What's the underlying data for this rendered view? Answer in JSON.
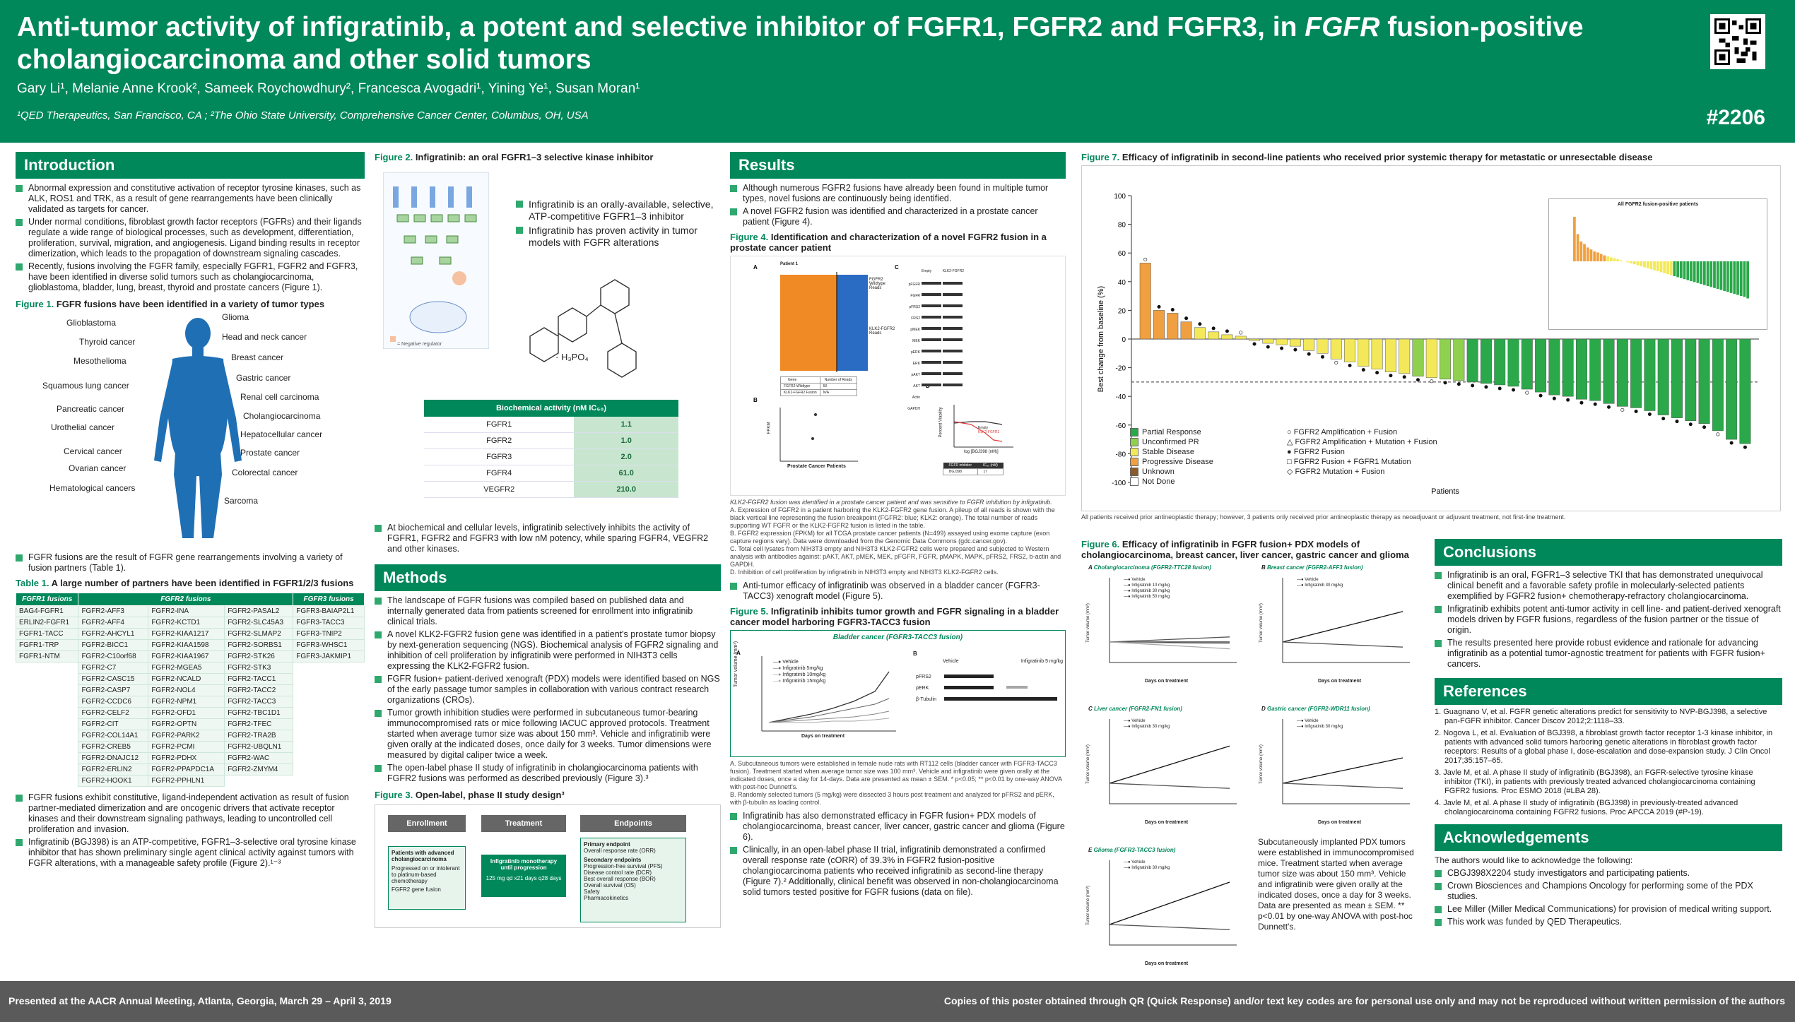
{
  "header": {
    "title_line1": "Anti-tumor activity of infigratinib, a potent and selective inhibitor of FGFR1, FGFR2 and FGFR3, in ",
    "title_italic": "FGFR",
    "title_line1_end": " fusion-positive",
    "title_line2": "cholangiocarcinoma and other solid tumors",
    "authors": "Gary Li¹, Melanie Anne Krook², Sameek Roychowdhury², Francesca Avogadri¹, Yining Ye¹, Susan Moran¹",
    "affiliations": "¹QED Therapeutics, San Francisco, CA ; ²The Ohio State University, Comprehensive Cancer Center, Columbus, OH, USA",
    "poster_id": "#2206"
  },
  "intro": {
    "heading": "Introduction",
    "bullets": [
      "Abnormal expression and constitutive activation of receptor tyrosine kinases, such as ALK, ROS1 and TRK, as a result of gene rearrangements have been clinically validated as targets for cancer.",
      "Under normal conditions, fibroblast growth factor receptors (FGFRs) and their ligands regulate a wide range of biological processes, such as development, differentiation, proliferation, survival, migration, and angiogenesis. Ligand binding results in receptor dimerization, which leads to the propagation of downstream signaling cascades.",
      "Recently, fusions involving the FGFR family, especially FGFR1, FGFR2 and FGFR3, have been identified in diverse solid tumors such as cholangiocarcinoma, glioblastoma, bladder, lung, breast, thyroid and prostate cancers (Figure 1)."
    ],
    "fig1_num": "Figure 1.",
    "fig1_title": "FGFR fusions have been identified in a variety of tumor types",
    "tumors_left": [
      "Glioblastoma",
      "Thyroid cancer",
      "Mesothelioma",
      "Squamous lung cancer",
      "Pancreatic cancer",
      "Urothelial cancer",
      "Cervical cancer",
      "Ovarian cancer",
      "Hematological cancers"
    ],
    "tumors_right": [
      "Glioma",
      "Head and neck cancer",
      "Breast cancer",
      "Gastric cancer",
      "Renal cell carcinoma",
      "Cholangiocarcinoma",
      "Hepatocellular cancer",
      "Prostate cancer",
      "Colorectal cancer",
      "Sarcoma"
    ],
    "after_fig1": "FGFR fusions are the result of FGFR gene rearrangements involving a variety of fusion partners (Table 1).",
    "table1_num": "Table 1.",
    "table1_title": "A large number of partners have been identified in FGFR1/2/3 fusions",
    "table1_headers": [
      "FGFR1 fusions",
      "FGFR2 fusions",
      "FGFR3 fusions"
    ],
    "table1_fgfr1": [
      "BAG4-FGFR1",
      "ERLIN2-FGFR1",
      "FGFR1-TACC",
      "FGFR1-TRP",
      "FGFR1-NTM"
    ],
    "table1_fgfr2a": [
      "FGFR2-AFF3",
      "FGFR2-AFF4",
      "FGFR2-AHCYL1",
      "FGFR2-BICC1",
      "FGFR2-C10orf68",
      "FGFR2-C7",
      "FGFR2-CASC15",
      "FGFR2-CASP7",
      "FGFR2-CCDC6",
      "FGFR2-CELF2",
      "FGFR2-CIT",
      "FGFR2-COL14A1",
      "FGFR2-CREB5",
      "FGFR2-DNAJC12",
      "FGFR2-ERLIN2",
      "FGFR2-HOOK1"
    ],
    "table1_fgfr2b": [
      "FGFR2-INA",
      "FGFR2-KCTD1",
      "FGFR2-KIAA1217",
      "FGFR2-KIAA1598",
      "FGFR2-KIAA1967",
      "FGFR2-MGEA5",
      "FGFR2-NCALD",
      "FGFR2-NOL4",
      "FGFR2-NPM1",
      "FGFR2-OFD1",
      "FGFR2-OPTN",
      "FGFR2-PARK2",
      "FGFR2-PCMI",
      "FGFR2-PDHX",
      "FGFR2-PPAPDC1A",
      "FGFR2-PPHLN1"
    ],
    "table1_fgfr2c": [
      "FGFR2-PASAL2",
      "FGFR2-SLC45A3",
      "FGFR2-SLMAP2",
      "FGFR2-SORBS1",
      "FGFR2-STK26",
      "FGFR2-STK3",
      "FGFR2-TACC1",
      "FGFR2-TACC2",
      "FGFR2-TACC3",
      "FGFR2-TBC1D1",
      "FGFR2-TFEC",
      "FGFR2-TRA2B",
      "FGFR2-UBQLN1",
      "FGFR2-WAC",
      "FGFR2-ZMYM4"
    ],
    "table1_fgfr3": [
      "FGFR3-BAIAP2L1",
      "FGFR3-TACC3",
      "FGFR3-TNIP2",
      "FGFR3-WHSC1",
      "FGFR3-JAKMIP1"
    ],
    "after_table": [
      "FGFR fusions exhibit constitutive, ligand-independent activation as result of fusion partner-mediated dimerization and are oncogenic drivers that activate receptor kinases and their downstream signaling pathways, leading to uncontrolled cell proliferation and invasion.",
      "Infigratinib (BGJ398) is an ATP-competitive, FGFR1–3-selective oral tyrosine kinase inhibitor that has shown preliminary single agent clinical activity against tumors with FGFR alterations, with a manageable safety profile (Figure 2).¹⁻³"
    ]
  },
  "col2": {
    "fig2_num": "Figure 2.",
    "fig2_title": "Infigratinib: an oral FGFR1–3 selective kinase inhibitor",
    "fig2_bullets": [
      "Infigratinib is an orally-available, selective, ATP-competitive FGFR1–3 inhibitor",
      "Infigratinib has proven activity in tumor models with FGFR alterations"
    ],
    "neg_reg": "= Negative regulator",
    "hpo": "· H₃PO₄",
    "bio_header": "Biochemical activity (nM IC₅₀)",
    "bio_rows": [
      [
        "FGFR1",
        "1.1"
      ],
      [
        "FGFR2",
        "1.0"
      ],
      [
        "FGFR3",
        "2.0"
      ],
      [
        "FGFR4",
        "61.0"
      ],
      [
        "VEGFR2",
        "210.0"
      ]
    ],
    "fig2_after": "At biochemical and cellular levels, infigratinib selectively inhibits the activity of FGFR1, FGFR2 and FGFR3 with low nM potency, while sparing FGFR4, VEGFR2 and other kinases.",
    "methods_heading": "Methods",
    "methods": [
      "The landscape of FGFR fusions was compiled based on published data and internally generated data from patients screened for enrollment into infigratinib clinical trials.",
      "A novel KLK2-FGFR2 fusion gene was identified in a patient's prostate tumor biopsy by next-generation sequencing (NGS). Biochemical analysis of FGFR2 signaling and inhibition of cell proliferation by infigratinib were performed in NIH3T3 cells expressing the KLK2-FGFR2 fusion.",
      "FGFR fusion+ patient-derived xenograft (PDX) models were identified based on NGS of the early passage tumor samples in collaboration with various contract research organizations (CROs).",
      "Tumor growth inhibition studies were performed in subcutaneous tumor-bearing immunocompromised rats or mice following IACUC approved protocols. Treatment started when average tumor size was about 150 mm³. Vehicle and infigratinib were given orally at the indicated doses, once daily for 3 weeks. Tumor dimensions were measured by digital caliper twice a week.",
      "The open-label phase II study of infigratinib in cholangiocarcinoma patients with FGFR2 fusions was performed as described previously (Figure 3).³"
    ],
    "fig3_num": "Figure 3.",
    "fig3_title": "Open-label, phase II study design³",
    "fig3_steps": [
      "Enrollment",
      "Treatment",
      "Endpoints"
    ],
    "fig3_enroll_title": "Patients with advanced cholangiocarcinoma",
    "fig3_enroll_items": [
      "Progressed on or intolerant to platinum-based chemotherapy",
      "FGFR2 gene fusion"
    ],
    "fig3_treat": "Infigratinib monotherapy until progression",
    "fig3_dose": "125 mg qd x21 days q28 days",
    "fig3_primary": "Primary endpoint",
    "fig3_primary_item": "Overall response rate (ORR)",
    "fig3_secondary": "Secondary endpoints",
    "fig3_secondary_items": [
      "Progression-free survival (PFS)",
      "Disease control rate (DCR)",
      "Best overall response (BOR)",
      "Overall survival (OS)",
      "Safety",
      "Pharmacokinetics"
    ]
  },
  "results": {
    "heading": "Results",
    "bullets": [
      "Although numerous FGFR2 fusions have already been found in multiple tumor types, novel fusions are continuously being identified.",
      "A novel FGFR2 fusion was identified and characterized in a prostate cancer patient (Figure 4)."
    ],
    "fig4_num": "Figure 4.",
    "fig4_title": "Identification and characterization of a novel FGFR2 fusion in a prostate cancer patient",
    "fig4_caption": "KLK2-FGFR2 fusion was identified in a prostate cancer patient and was sensitive to FGFR inhibition by infigratinib.",
    "fig4_notes": [
      "A. Expression of FGFR2 in a patient harboring the KLK2-FGFR2 gene fusion. A pileup of all reads is shown with the black vertical line representing the fusion breakpoint (FGFR2: blue; KLK2: orange). The total number of reads supporting WT FGFR or the KLK2-FGFR2 fusion is listed in the table.",
      "B. FGFR2 expression (FPKM) for all TCGA prostate cancer patients (N=499) assayed using exome capture (exon capture regions vary). Data were downloaded from the Genomic Data Commons (gdc.cancer.gov).",
      "C. Total cell lysates from NIH3T3 empty and NIH3T3 KLK2-FGFR2 cells were prepared and subjected to Western analysis with antibodies against: pAKT, AKT, pMEK, MEK, pFGFR, FGFR, pMAPK, MAPK, pFRS2, FRS2, b-actin and GAPDH.",
      "D. Inhibition of cell proliferation by infigratinib in NIH3T3 empty and NIH3T3 KLK2-FGFR2 cells."
    ],
    "fig4_patient": "Patient 1",
    "fig4_wt_reads": "FGFR2 Wildtype Reads",
    "fig4_fusion_reads": "KLK2-FGFR2 Reads",
    "fig4_table_headers": [
      "Gene",
      "Number of Reads"
    ],
    "fig4_table_rows": [
      [
        "FGFR2-Wildtype",
        "50"
      ],
      [
        "KLK2-FGFR2 Fusion",
        "N/A"
      ]
    ],
    "fig4_c_cols": [
      "Empty",
      "KLK2-FGFR2"
    ],
    "fig4_blots": [
      "pFGFR",
      "FGFR",
      "pFRS2",
      "FRS2",
      "pMEK",
      "MEK",
      "pERK",
      "ERK",
      "pAKT",
      "AKT",
      "Actin",
      "GAPDH"
    ],
    "fig4_b_label": "Prostate Cancer Patients",
    "fig4_b_ylabel": "FPKM",
    "fig4_d_table_h": [
      "FGFR inhibitor",
      "IC₅₀ (nM)"
    ],
    "fig4_d_table_r": [
      "BGJ398",
      "17"
    ],
    "fig4_d_xlabel": "log [BGJ398 (nM)]",
    "fig4_d_ylabel": "Percent Viability",
    "fig4_d_legend": [
      "Empty",
      "KLK2-FGFR2"
    ],
    "after_fig4": "Anti-tumor efficacy of infigratinib was observed in a bladder cancer (FGFR3-TACC3) xenograft model (Figure 5).",
    "fig5_num": "Figure 5.",
    "fig5_title": "Infigratinib inhibits tumor growth and FGFR signaling in a bladder cancer model harboring FGFR3-TACC3 fusion",
    "fig5_header": "Bladder cancer (FGFR3-TACC3 fusion)",
    "fig5_legend": [
      "Vehicle",
      "Infigratinib 5mg/kg",
      "Infigratinib 10mg/kg",
      "Infigratinib 15mg/kg"
    ],
    "fig5_xlabel": "Days on treatment",
    "fig5_ylabel": "Tumor volume (mm³)",
    "fig5_b_cols": [
      "Vehicle",
      "Infigratinib 5 mg/kg"
    ],
    "fig5_b_rows": [
      "pFRS2",
      "pERK",
      "β-Tubulin"
    ],
    "fig5_notes": [
      "A. Subcutaneous tumors were established in female nude rats with RT112 cells (bladder cancer with FGFR3-TACC3 fusion). Treatment started when average tumor size was 100 mm³. Vehicle and infigratinib were given orally at the indicated doses, once a day for 14-days. Data are presented as mean ± SEM. * p<0.05; ** p<0.01 by one-way ANOVA with post-hoc Dunnett's.",
      "B. Randomly selected tumors (5 mg/kg) were dissected 3 hours post treatment and analyzed for pFRS2 and pERK, with β-tubulin as loading control."
    ],
    "bullets2": [
      "Infigratinib has also demonstrated efficacy in FGFR fusion+ PDX models of cholangiocarcinoma, breast cancer, liver cancer, gastric cancer and glioma (Figure 6).",
      "Clinically, in an open-label phase II trial, infigratinib demonstrated a confirmed overall response rate (cORR) of 39.3% in FGFR2 fusion-positive cholangiocarcinoma patients who received infigratinib as second-line therapy (Figure 7).² Additionally, clinical benefit was observed in non-cholangiocarcinoma solid tumors tested positive for FGFR fusions (data on file)."
    ]
  },
  "fig7": {
    "num": "Figure 7.",
    "title": "Efficacy of infigratinib in second-line patients who received prior systemic therapy for metastatic or unresectable disease",
    "ylabel": "Best change from baseline (%)",
    "xlabel": "Patients",
    "note": "All patients received prior antineoplastic therapy; however, 3 patients only received prior antineoplastic therapy as neoadjuvant or adjuvant treatment, not first-line treatment.",
    "inset_title": "All FGFR2 fusion-positive patients",
    "legend_colors": [
      [
        "Partial Response",
        "#2aa84a"
      ],
      [
        "Unconfirmed PR",
        "#8fd14f"
      ],
      [
        "Stable Disease",
        "#f2e85a"
      ],
      [
        "Progressive Disease",
        "#f0a040"
      ],
      [
        "Unknown",
        "#8a5a2a"
      ],
      [
        "Not Done",
        "#ffffff"
      ]
    ],
    "legend_symbols": [
      [
        "FGFR2 Amplification + Fusion",
        "○"
      ],
      [
        "FGFR2 Amplification + Mutation + Fusion",
        "△"
      ],
      [
        "FGFR2 Fusion",
        "●"
      ],
      [
        "FGFR2 Fusion + FGFR1 Mutation",
        "□"
      ],
      [
        "FGFR2 Mutation + Fusion",
        "◇"
      ]
    ]
  },
  "chart_data": {
    "type": "bar",
    "title": "Efficacy of infigratinib in second-line patients who received prior systemic therapy for metastatic or unresectable disease",
    "xlabel": "Patients",
    "ylabel": "Best change from baseline (%)",
    "ylim": [
      -100,
      100
    ],
    "values": [
      53,
      20,
      18,
      12,
      8,
      5,
      3,
      2,
      -1,
      -3,
      -4,
      -5,
      -8,
      -10,
      -14,
      -16,
      -19,
      -21,
      -23,
      -24,
      -26,
      -27,
      -28,
      -29,
      -30,
      -31,
      -32,
      -33,
      -35,
      -37,
      -39,
      -40,
      -42,
      -43,
      -45,
      -47,
      -48,
      -50,
      -53,
      -55,
      -57,
      -59,
      -64,
      -70,
      -73
    ],
    "colors": [
      "#f0a040",
      "#f0a040",
      "#f0a040",
      "#f0a040",
      "#f2e85a",
      "#f2e85a",
      "#f2e85a",
      "#f2e85a",
      "#f2e85a",
      "#f2e85a",
      "#f2e85a",
      "#f2e85a",
      "#f2e85a",
      "#f2e85a",
      "#f2e85a",
      "#f2e85a",
      "#f2e85a",
      "#f2e85a",
      "#f2e85a",
      "#f2e85a",
      "#8fd14f",
      "#f2e85a",
      "#8fd14f",
      "#8fd14f",
      "#2aa84a",
      "#2aa84a",
      "#2aa84a",
      "#2aa84a",
      "#2aa84a",
      "#2aa84a",
      "#2aa84a",
      "#2aa84a",
      "#2aa84a",
      "#2aa84a",
      "#2aa84a",
      "#2aa84a",
      "#2aa84a",
      "#2aa84a",
      "#2aa84a",
      "#2aa84a",
      "#2aa84a",
      "#2aa84a",
      "#2aa84a",
      "#2aa84a",
      "#2aa84a"
    ],
    "reference_line": -30
  },
  "fig6": {
    "num": "Figure 6.",
    "title": "Efficacy of infigratinib in FGFR fusion+ PDX models of cholangiocarcinoma, breast cancer, liver cancer, gastric cancer and glioma",
    "panels": [
      {
        "letter": "A",
        "title": "Cholangiocarcinoma (FGFR2-TTC28 fusion)",
        "legend": [
          "Vehicle",
          "Infigratinib 10 mg/kg",
          "Infigratinib 30 mg/kg",
          "Infigratinib 50 mg/kg"
        ]
      },
      {
        "letter": "B",
        "title": "Breast cancer (FGFR2-AFF3 fusion)",
        "legend": [
          "Vehicle",
          "Infigratinib 30 mg/kg"
        ]
      },
      {
        "letter": "C",
        "title": "Liver cancer (FGFR2-FN1 fusion)",
        "legend": [
          "Vehicle",
          "Infigratinib 30 mg/kg"
        ]
      },
      {
        "letter": "D",
        "title": "Gastric cancer (FGFR2-WDR11 fusion)",
        "legend": [
          "Vehicle",
          "Infigratinib 30 mg/kg"
        ]
      },
      {
        "letter": "E",
        "title": "Glioma (FGFR3-TACC3 fusion)",
        "legend": [
          "Vehicle",
          "Infigratinib 30 mg/kg"
        ]
      }
    ],
    "xlabel": "Days on treatment",
    "ylabel": "Tumor volume (mm³)",
    "note": "Subcutaneously implanted PDX tumors were established in immunocompromised mice. Treatment started when average tumor size was about 150 mm³. Vehicle and infigratinib were given orally at the indicated doses, once a day for 3 weeks. Data are presented as mean ± SEM. ** p<0.01 by one-way ANOVA with post-hoc Dunnett's."
  },
  "conclusions": {
    "heading": "Conclusions",
    "bullets": [
      "Infigratinib is an oral, FGFR1–3 selective TKI that has demonstrated unequivocal clinical benefit and a favorable safety profile in molecularly-selected patients exemplified by FGFR2 fusion+ chemotherapy-refractory cholangiocarcinoma.",
      "Infigratinib exhibits potent anti-tumor activity in cell line- and patient-derived xenograft models driven by FGFR fusions, regardless of the fusion partner or the tissue of origin.",
      "The results presented here provide robust evidence and rationale for advancing infigratinib as a potential tumor-agnostic treatment for patients with FGFR fusion+ cancers."
    ]
  },
  "references": {
    "heading": "References",
    "items": [
      "1. Guagnano V, et al. FGFR genetic alterations predict for sensitivity to NVP-BGJ398, a selective pan-FGFR inhibitor. Cancer Discov 2012;2:1118–33.",
      "2. Nogova L, et al. Evaluation of BGJ398, a fibroblast growth factor receptor 1-3 kinase inhibitor, in patients with advanced solid tumors harboring genetic alterations in fibroblast growth factor receptors: Results of a global phase I, dose-escalation and dose-expansion study. J Clin Oncol 2017;35:157–65.",
      "3. Javle M, et al. A phase II study of infigratinib (BGJ398), an FGFR-selective tyrosine kinase inhibitor (TKI), in patients with previously treated advanced cholangiocarcinoma containing FGFR2 fusions. Proc ESMO 2018 (#LBA 28).",
      "4. Javle M, et al. A phase II study of infigratinib (BGJ398) in previously-treated advanced cholangiocarcinoma containing FGFR2 fusions. Proc APCCA 2019 (#P-19)."
    ]
  },
  "ack": {
    "heading": "Acknowledgements",
    "intro": "The authors would like to acknowledge the following:",
    "items": [
      "CBGJ398X2204 study investigators and participating patients.",
      "Crown Biosciences and Champions Oncology for performing some of the PDX studies.",
      "Lee Miller (Miller Medical Communications) for provision of medical writing support.",
      "This work was funded by QED Therapeutics."
    ]
  },
  "footer": {
    "left": "Presented at the AACR Annual Meeting, Atlanta, Georgia, March 29 – April 3, 2019",
    "right": "Copies of this poster obtained through QR (Quick Response) and/or text key codes are for personal use only and may not be reproduced without written permission of the authors"
  }
}
